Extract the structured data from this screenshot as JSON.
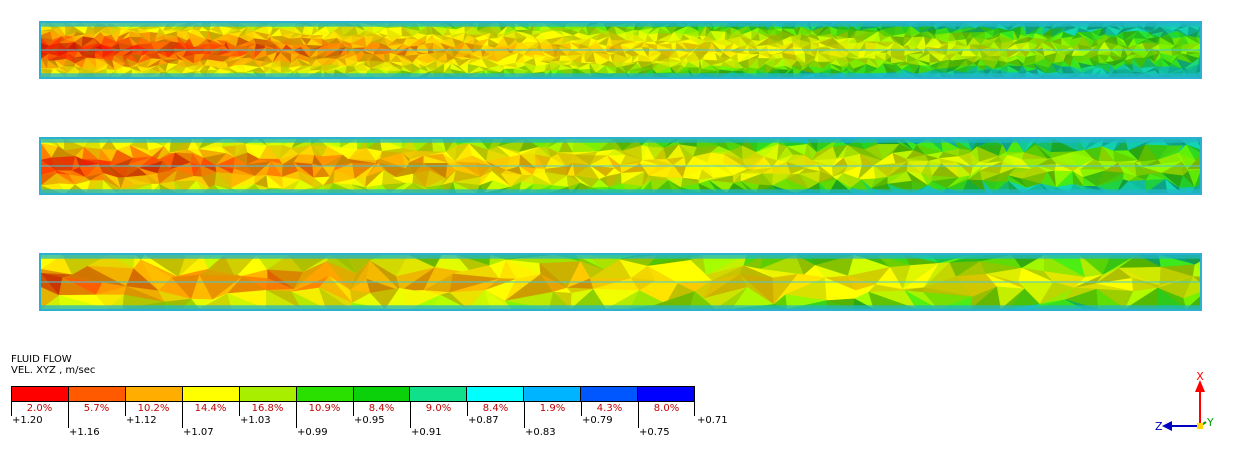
{
  "legend": {
    "title_line1": "FLUID FLOW",
    "title_line2": "VEL. XYZ , m/sec",
    "colors": [
      "#ff0000",
      "#ff5a00",
      "#ffae00",
      "#ffff00",
      "#a8ee00",
      "#2ae000",
      "#0ad10a",
      "#10e08a",
      "#00ffff",
      "#00b4ff",
      "#0056ff",
      "#0000ff"
    ],
    "percentages": [
      "2.0%",
      "5.7%",
      "10.2%",
      "14.4%",
      "16.8%",
      "10.9%",
      "8.4%",
      "9.0%",
      "8.4%",
      "1.9%",
      "4.3%",
      "8.0%"
    ],
    "values": [
      "+1.20",
      "+1.16",
      "+1.12",
      "+1.07",
      "+1.03",
      "+0.99",
      "+0.95",
      "+0.91",
      "+0.87",
      "+0.83",
      "+0.79",
      "+0.75",
      "+0.71"
    ]
  },
  "axes": {
    "x_label": "X",
    "y_label": "Y",
    "z_label": "Z"
  }
}
